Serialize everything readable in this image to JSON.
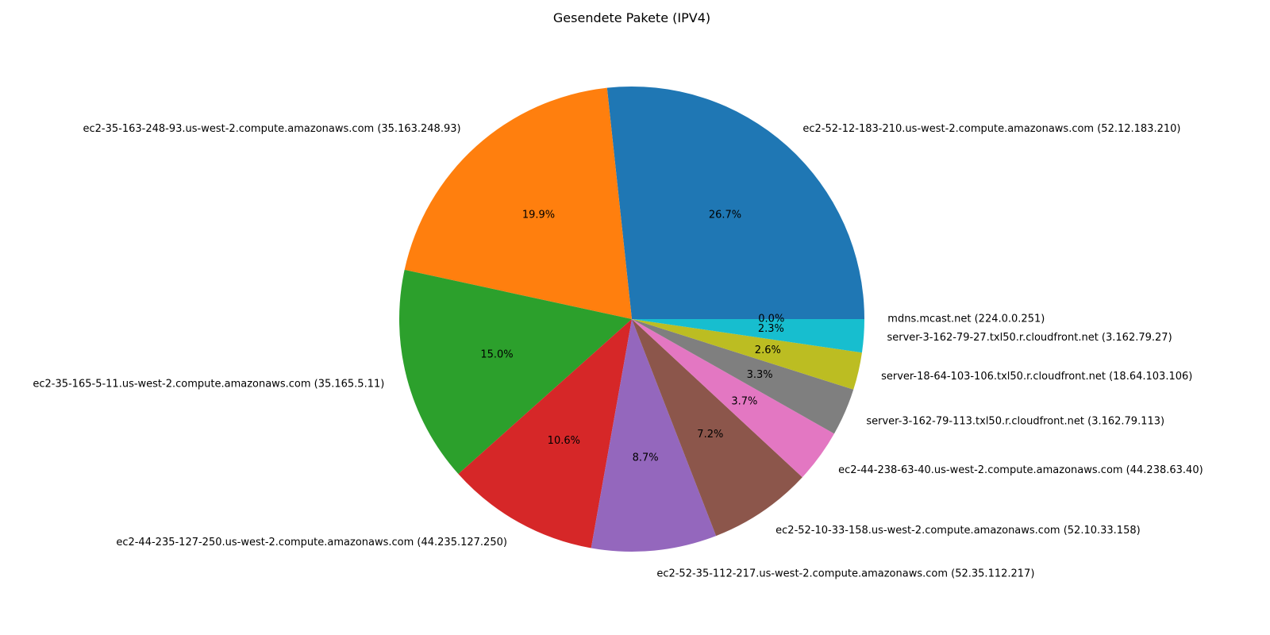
{
  "chart_data": {
    "type": "pie",
    "title": "Gesendete Pakete (IPV4)",
    "start_angle_deg": 0,
    "direction": "counterclockwise",
    "slices": [
      {
        "label": "ec2-52-12-183-210.us-west-2.compute.amazonaws.com (52.12.183.210)",
        "value": 26.7,
        "pct_label": "26.7%",
        "color": "#1f77b4"
      },
      {
        "label": "ec2-35-163-248-93.us-west-2.compute.amazonaws.com (35.163.248.93)",
        "value": 19.9,
        "pct_label": "19.9%",
        "color": "#ff7f0e"
      },
      {
        "label": "ec2-35-165-5-11.us-west-2.compute.amazonaws.com (35.165.5.11)",
        "value": 15.0,
        "pct_label": "15.0%",
        "color": "#2ca02c"
      },
      {
        "label": "ec2-44-235-127-250.us-west-2.compute.amazonaws.com (44.235.127.250)",
        "value": 10.6,
        "pct_label": "10.6%",
        "color": "#d62728"
      },
      {
        "label": "ec2-52-35-112-217.us-west-2.compute.amazonaws.com (52.35.112.217)",
        "value": 8.7,
        "pct_label": "8.7%",
        "color": "#9467bd"
      },
      {
        "label": "ec2-52-10-33-158.us-west-2.compute.amazonaws.com (52.10.33.158)",
        "value": 7.2,
        "pct_label": "7.2%",
        "color": "#8c564b"
      },
      {
        "label": "ec2-44-238-63-40.us-west-2.compute.amazonaws.com (44.238.63.40)",
        "value": 3.7,
        "pct_label": "3.7%",
        "color": "#e377c2"
      },
      {
        "label": "server-3-162-79-113.txl50.r.cloudfront.net (3.162.79.113)",
        "value": 3.3,
        "pct_label": "3.3%",
        "color": "#7f7f7f"
      },
      {
        "label": "server-18-64-103-106.txl50.r.cloudfront.net (18.64.103.106)",
        "value": 2.6,
        "pct_label": "2.6%",
        "color": "#bcbd22"
      },
      {
        "label": "server-3-162-79-27.txl50.r.cloudfront.net (3.162.79.27)",
        "value": 2.3,
        "pct_label": "2.3%",
        "color": "#17becf"
      },
      {
        "label": "mdns.mcast.net (224.0.0.251)",
        "value": 0.0,
        "pct_label": "0.0%",
        "color": "#1f77b4"
      }
    ]
  }
}
